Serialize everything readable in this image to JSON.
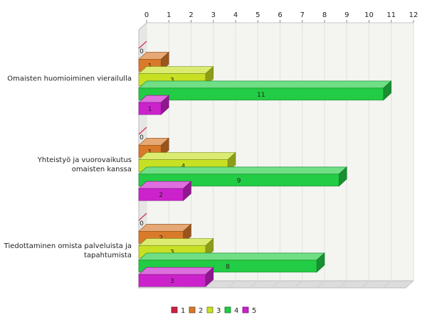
{
  "chart_data": {
    "type": "bar",
    "orientation": "horizontal",
    "style": "3d",
    "categories": [
      "Omaisten huomioiminen vierailulla",
      "Yhteistyö ja vuorovaikutus omaisten kanssa",
      "Tiedottaminen omista palveluista ja tapahtumista"
    ],
    "category_lines": [
      [
        "Omaisten huomioiminen vierailulla"
      ],
      [
        "Yhteistyö ja vuorovaikutus",
        "omaisten kanssa"
      ],
      [
        "Tiedottaminen omista palveluista ja",
        "tapahtumista"
      ]
    ],
    "series": [
      {
        "name": "1",
        "color": "#cc2244",
        "values": [
          0,
          0,
          0
        ]
      },
      {
        "name": "2",
        "color": "#d97a2a",
        "values": [
          1,
          1,
          2
        ]
      },
      {
        "name": "3",
        "color": "#c8e024",
        "values": [
          3,
          4,
          3
        ]
      },
      {
        "name": "4",
        "color": "#22cc44",
        "values": [
          11,
          9,
          8
        ]
      },
      {
        "name": "5",
        "color": "#cc22cc",
        "values": [
          1,
          2,
          3
        ]
      }
    ],
    "xlim": [
      0,
      12
    ],
    "xticks": [
      "0",
      "1",
      "2",
      "3",
      "4",
      "5",
      "6",
      "7",
      "8",
      "9",
      "10",
      "11",
      "12"
    ],
    "x_axis_position": "top",
    "grid": true,
    "legend_position": "bottom",
    "title": "",
    "xlabel": "",
    "ylabel": ""
  }
}
